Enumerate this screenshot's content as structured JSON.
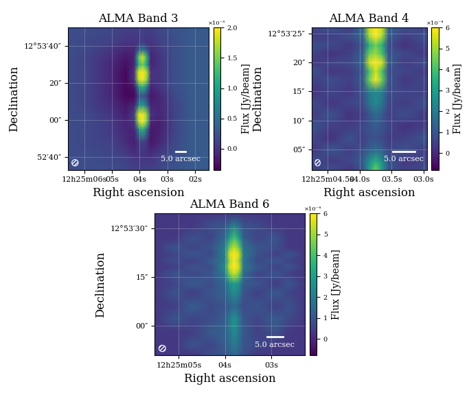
{
  "chart_data": [
    {
      "type": "heatmap",
      "title": "ALMA Band 3",
      "x_label": "Right ascension",
      "y_label": "Declination",
      "color": "viridis",
      "grid": true,
      "x": [
        6.6,
        5.8,
        5.0,
        4.5,
        4.2,
        4.05,
        3.9,
        3.75,
        3.6,
        3.3,
        2.8,
        2.2,
        1.5
      ],
      "y": [
        -27,
        -20,
        -12,
        -5,
        -1,
        3,
        8,
        13,
        18,
        22,
        26,
        30,
        34,
        38,
        42,
        50
      ],
      "cells": [
        [
          0.2,
          0.2,
          0.2,
          0.15,
          0.1,
          0.1,
          0.1,
          0.1,
          0.1,
          0.15,
          0.25,
          0.3,
          0.3
        ],
        [
          0.2,
          0.2,
          0.15,
          0.1,
          0.0,
          0.0,
          0.0,
          0.0,
          0.0,
          0.1,
          0.2,
          0.3,
          0.3
        ],
        [
          0.2,
          0.15,
          0.1,
          -0.05,
          -0.15,
          0.0,
          0.1,
          0.0,
          -0.2,
          -0.1,
          0.15,
          0.3,
          0.3
        ],
        [
          0.2,
          0.15,
          0.05,
          -0.1,
          -0.1,
          0.6,
          1.2,
          0.6,
          -0.2,
          -0.15,
          0.1,
          0.3,
          0.3
        ],
        [
          0.2,
          0.15,
          0.05,
          -0.1,
          0.0,
          1.6,
          2.0,
          1.5,
          -0.1,
          -0.15,
          0.1,
          0.3,
          0.3
        ],
        [
          0.2,
          0.15,
          0.0,
          -0.15,
          0.1,
          1.8,
          2.0,
          1.6,
          0.0,
          -0.1,
          0.1,
          0.3,
          0.3
        ],
        [
          0.2,
          0.1,
          -0.05,
          -0.2,
          -0.1,
          0.6,
          1.0,
          0.5,
          -0.1,
          -0.1,
          0.1,
          0.3,
          0.3
        ],
        [
          0.2,
          0.1,
          -0.1,
          -0.3,
          -0.3,
          0.1,
          0.3,
          0.1,
          -0.2,
          -0.1,
          0.15,
          0.3,
          0.3
        ],
        [
          0.2,
          0.1,
          -0.1,
          -0.3,
          -0.2,
          0.7,
          1.2,
          0.7,
          -0.1,
          0.0,
          0.2,
          0.3,
          0.3
        ],
        [
          0.2,
          0.1,
          -0.1,
          -0.3,
          0.0,
          1.7,
          2.0,
          1.6,
          0.0,
          0.0,
          0.2,
          0.3,
          0.3
        ],
        [
          0.2,
          0.1,
          -0.1,
          -0.3,
          0.0,
          1.8,
          2.0,
          1.7,
          0.0,
          0.0,
          0.2,
          0.3,
          0.3
        ],
        [
          0.2,
          0.1,
          -0.1,
          -0.25,
          -0.1,
          1.0,
          1.5,
          1.0,
          -0.1,
          0.0,
          0.2,
          0.3,
          0.3
        ],
        [
          0.2,
          0.1,
          -0.05,
          -0.2,
          -0.1,
          1.3,
          1.9,
          1.2,
          -0.1,
          0.0,
          0.2,
          0.3,
          0.3
        ],
        [
          0.2,
          0.15,
          0.0,
          -0.1,
          -0.1,
          0.3,
          0.6,
          0.3,
          -0.05,
          0.05,
          0.2,
          0.3,
          0.3
        ],
        [
          0.2,
          0.15,
          0.1,
          0.0,
          0.0,
          0.0,
          0.1,
          0.0,
          0.0,
          0.1,
          0.2,
          0.3,
          0.3
        ],
        [
          0.2,
          0.2,
          0.15,
          0.1,
          0.1,
          0.1,
          0.1,
          0.1,
          0.1,
          0.15,
          0.25,
          0.3,
          0.3
        ]
      ],
      "xlim": [
        6.6,
        1.5
      ],
      "ylim": [
        -27,
        50
      ],
      "xticks": [
        {
          "value": 6,
          "label": "12h25m06s"
        },
        {
          "value": 5,
          "label": "05s"
        },
        {
          "value": 4,
          "label": "04s"
        },
        {
          "value": 3,
          "label": "03s"
        },
        {
          "value": 2,
          "label": "02s"
        }
      ],
      "yticks": [
        {
          "value": -20,
          "label": "52′40″"
        },
        {
          "value": 0,
          "label": "00″"
        },
        {
          "value": 20,
          "label": "20″"
        },
        {
          "value": 40,
          "label": "12°53′40″"
        }
      ],
      "colorbar_label": "Flux [Jy/beam]",
      "color_range": [
        -0.35,
        2.0
      ],
      "color_ticks": [
        0.0,
        0.5,
        1.0,
        1.5,
        2.0
      ],
      "color_scale_label": "×10⁻³",
      "scale_bar_length": 5.0,
      "scale_bar_label": "5.0 arcsec"
    },
    {
      "type": "heatmap",
      "title": "ALMA Band 4",
      "x_label": "Right ascension",
      "y_label": "Declination",
      "color": "viridis",
      "grid": true,
      "x": [
        4.75,
        4.45,
        4.15,
        3.95,
        3.85,
        3.75,
        3.65,
        3.55,
        3.3,
        2.95
      ],
      "y": [
        1.5,
        3,
        5,
        7,
        9,
        11,
        13,
        15,
        17,
        18.5,
        20,
        21.5,
        23,
        24.5,
        26
      ],
      "cells": [
        [
          0.5,
          0.8,
          0.3,
          1.0,
          3.0,
          4.5,
          3.0,
          1.0,
          0.5,
          0.8
        ],
        [
          0.8,
          0.4,
          0.6,
          1.2,
          2.5,
          3.5,
          2.5,
          1.0,
          0.3,
          0.6
        ],
        [
          0.3,
          1.0,
          0.5,
          0.8,
          1.2,
          1.5,
          1.2,
          0.6,
          0.9,
          0.4
        ],
        [
          0.6,
          0.2,
          0.9,
          0.5,
          0.8,
          0.9,
          0.7,
          0.4,
          0.5,
          1.0
        ],
        [
          1.0,
          0.5,
          0.4,
          0.7,
          1.0,
          1.2,
          1.0,
          0.6,
          0.2,
          0.5
        ],
        [
          0.4,
          0.9,
          0.2,
          0.5,
          1.0,
          1.5,
          1.1,
          0.5,
          0.8,
          0.3
        ],
        [
          0.7,
          0.3,
          0.6,
          0.8,
          1.8,
          2.5,
          1.8,
          0.7,
          0.4,
          0.9
        ],
        [
          0.2,
          0.6,
          0.3,
          0.9,
          2.0,
          2.4,
          2.0,
          0.8,
          0.6,
          0.5
        ],
        [
          0.5,
          0.8,
          0.5,
          1.2,
          4.5,
          6.0,
          4.5,
          1.0,
          0.3,
          0.7
        ],
        [
          0.9,
          0.3,
          0.4,
          1.0,
          4.0,
          5.5,
          4.0,
          0.8,
          0.6,
          0.4
        ],
        [
          0.3,
          0.6,
          0.7,
          1.5,
          5.5,
          6.0,
          5.5,
          1.2,
          0.4,
          0.8
        ],
        [
          0.6,
          0.2,
          0.5,
          1.3,
          4.5,
          5.0,
          4.0,
          1.0,
          0.7,
          0.3
        ],
        [
          0.8,
          0.7,
          0.3,
          1.0,
          3.5,
          4.5,
          3.5,
          0.8,
          0.2,
          0.6
        ],
        [
          0.4,
          0.5,
          0.8,
          1.5,
          5.0,
          6.0,
          5.0,
          1.2,
          0.5,
          0.9
        ],
        [
          0.6,
          0.9,
          0.4,
          1.5,
          5.5,
          6.0,
          5.5,
          1.3,
          0.8,
          0.5
        ]
      ],
      "xlim": [
        4.75,
        2.95
      ],
      "ylim": [
        1.5,
        26
      ],
      "xticks": [
        {
          "value": 4.5,
          "label": "12h25m04.5s"
        },
        {
          "value": 4.0,
          "label": "04.0s"
        },
        {
          "value": 3.5,
          "label": "03.5s"
        },
        {
          "value": 3.0,
          "label": "03.0s"
        }
      ],
      "yticks": [
        {
          "value": 5,
          "label": "05″"
        },
        {
          "value": 10,
          "label": "10″"
        },
        {
          "value": 15,
          "label": "15″"
        },
        {
          "value": 20,
          "label": "20″"
        },
        {
          "value": 25,
          "label": "12°53′25″"
        }
      ],
      "colorbar_label": "Flux [Jy/beam]",
      "color_range": [
        -0.8,
        6.0
      ],
      "color_ticks": [
        0,
        1,
        2,
        3,
        4,
        5,
        6
      ],
      "color_scale_label": "×10⁻⁴",
      "scale_bar_length": 5.0,
      "scale_bar_label": "5.0 arcsec"
    },
    {
      "type": "heatmap",
      "title": "ALMA Band 6",
      "x_label": "Right ascension",
      "y_label": "Declination",
      "color": "viridis",
      "grid": true,
      "x": [
        5.52,
        5.1,
        4.7,
        4.3,
        4.0,
        3.9,
        3.8,
        3.7,
        3.6,
        3.3,
        2.9,
        2.6,
        2.27
      ],
      "y": [
        -9.2,
        -6,
        -2,
        2,
        6,
        10,
        13,
        16,
        18,
        20,
        22,
        24,
        27,
        31,
        34.6
      ],
      "cells": [
        [
          0.3,
          0.3,
          0.3,
          0.8,
          1.0,
          1.2,
          1.5,
          1.2,
          0.9,
          0.3,
          0.3,
          0.3,
          0.3
        ],
        [
          0.3,
          0.3,
          0.9,
          0.6,
          1.2,
          1.5,
          2.0,
          1.6,
          1.0,
          0.7,
          0.3,
          0.3,
          0.3
        ],
        [
          0.3,
          0.3,
          0.5,
          1.1,
          1.3,
          1.8,
          2.5,
          1.8,
          1.1,
          0.5,
          0.9,
          0.3,
          0.3
        ],
        [
          0.3,
          1.0,
          0.6,
          0.8,
          1.2,
          2.0,
          2.8,
          2.0,
          1.0,
          0.6,
          1.2,
          0.7,
          0.3
        ],
        [
          0.3,
          0.5,
          1.2,
          0.7,
          1.0,
          1.2,
          1.5,
          1.2,
          0.8,
          1.0,
          0.5,
          0.9,
          0.3
        ],
        [
          0.3,
          0.9,
          0.4,
          1.0,
          1.3,
          2.0,
          2.5,
          2.0,
          1.0,
          0.5,
          1.1,
          0.6,
          0.3
        ],
        [
          0.3,
          0.6,
          1.1,
          0.8,
          1.5,
          2.5,
          3.0,
          2.5,
          1.2,
          0.9,
          0.4,
          1.0,
          0.3
        ],
        [
          0.3,
          1.0,
          0.7,
          1.0,
          2.0,
          4.5,
          5.5,
          4.5,
          1.5,
          0.6,
          1.0,
          0.5,
          0.3
        ],
        [
          0.3,
          0.5,
          0.9,
          0.8,
          2.5,
          5.5,
          6.0,
          5.5,
          2.0,
          1.0,
          0.6,
          0.9,
          0.3
        ],
        [
          0.3,
          0.8,
          0.5,
          1.1,
          2.0,
          5.0,
          6.0,
          5.0,
          1.8,
          0.7,
          1.0,
          0.6,
          0.3
        ],
        [
          0.3,
          0.6,
          1.0,
          0.7,
          2.2,
          5.5,
          6.0,
          5.5,
          2.0,
          0.9,
          0.5,
          1.0,
          0.3
        ],
        [
          0.3,
          1.0,
          0.6,
          0.9,
          2.0,
          4.5,
          5.5,
          4.5,
          1.8,
          1.0,
          0.8,
          0.3,
          0.3
        ],
        [
          0.3,
          0.3,
          0.9,
          0.6,
          1.5,
          3.0,
          4.0,
          3.0,
          1.2,
          0.6,
          1.0,
          0.3,
          0.3
        ],
        [
          0.3,
          0.3,
          0.3,
          0.8,
          1.0,
          1.5,
          2.0,
          1.5,
          0.9,
          0.7,
          0.3,
          0.3,
          0.3
        ],
        [
          0.3,
          0.3,
          0.3,
          0.3,
          0.3,
          0.3,
          0.3,
          0.3,
          0.3,
          0.3,
          0.3,
          0.3,
          0.3
        ]
      ],
      "xlim": [
        5.52,
        2.27
      ],
      "ylim": [
        -9.2,
        34.6
      ],
      "xticks": [
        {
          "value": 5,
          "label": "12h25m05s"
        },
        {
          "value": 4,
          "label": "04s"
        },
        {
          "value": 3,
          "label": "03s"
        }
      ],
      "yticks": [
        {
          "value": 0,
          "label": "00″"
        },
        {
          "value": 15,
          "label": "15″"
        },
        {
          "value": 30,
          "label": "12°53′30″"
        }
      ],
      "colorbar_label": "Flux [Jy/beam]",
      "color_range": [
        -0.8,
        6.0
      ],
      "color_ticks": [
        0,
        1,
        2,
        3,
        4,
        5,
        6
      ],
      "color_scale_label": "×10⁻⁴",
      "scale_bar_length": 5.0,
      "scale_bar_label": "5.0 arcsec"
    }
  ]
}
